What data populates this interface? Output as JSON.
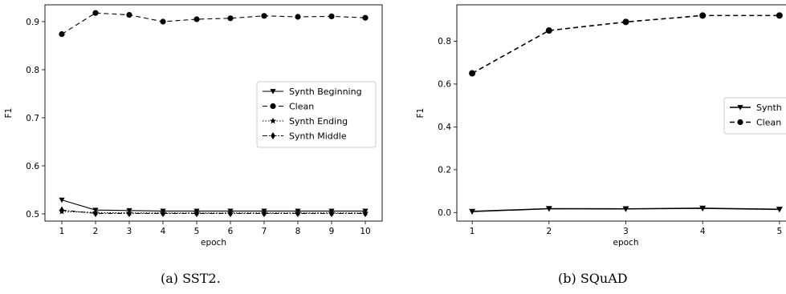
{
  "captions": {
    "a": "(a) SST2.",
    "b": "(b) SQuAD"
  },
  "chart_data": [
    {
      "type": "line",
      "title": "",
      "xlabel": "epoch",
      "ylabel": "F1",
      "x": [
        1,
        2,
        3,
        4,
        5,
        6,
        7,
        8,
        9,
        10
      ],
      "xlim": [
        0.5,
        10.5
      ],
      "ylim": [
        0.485,
        0.935
      ],
      "xticks": [
        "1",
        "2",
        "3",
        "4",
        "5",
        "6",
        "7",
        "8",
        "9",
        "10"
      ],
      "yticks": [
        "0.5",
        "0.6",
        "0.7",
        "0.8",
        "0.9"
      ],
      "ytick_values": [
        0.5,
        0.6,
        0.7,
        0.8,
        0.9
      ],
      "grid": false,
      "legend_position": "center-right",
      "series": [
        {
          "name": "Synth Beginning",
          "marker": "triangle-down",
          "linestyle": "solid",
          "values": [
            0.529,
            0.508,
            0.507,
            0.506,
            0.506,
            0.506,
            0.506,
            0.506,
            0.506,
            0.506
          ]
        },
        {
          "name": "Clean",
          "marker": "circle",
          "linestyle": "dashed",
          "values": [
            0.874,
            0.918,
            0.914,
            0.9,
            0.905,
            0.907,
            0.912,
            0.91,
            0.911,
            0.908
          ]
        },
        {
          "name": "Synth Ending",
          "marker": "star",
          "linestyle": "dotted",
          "values": [
            0.505,
            0.503,
            0.502,
            0.502,
            0.502,
            0.502,
            0.502,
            0.502,
            0.502,
            0.502
          ]
        },
        {
          "name": "Synth Middle",
          "marker": "diamond",
          "linestyle": "dashdot",
          "values": [
            0.508,
            0.501,
            0.501,
            0.501,
            0.501,
            0.501,
            0.501,
            0.501,
            0.501,
            0.501
          ]
        }
      ]
    },
    {
      "type": "line",
      "title": "",
      "xlabel": "epoch",
      "ylabel": "F1",
      "x": [
        1,
        2,
        3,
        4,
        5
      ],
      "xlim": [
        0.8,
        5.2
      ],
      "ylim": [
        -0.04,
        0.97
      ],
      "xticks": [
        "1",
        "2",
        "3",
        "4",
        "5"
      ],
      "yticks": [
        "0.0",
        "0.2",
        "0.4",
        "0.6",
        "0.8"
      ],
      "ytick_values": [
        0.0,
        0.2,
        0.4,
        0.6,
        0.8
      ],
      "grid": false,
      "legend_position": "center-right (clipped)",
      "series": [
        {
          "name": "Synth",
          "marker": "triangle-down",
          "linestyle": "solid",
          "values": [
            0.005,
            0.018,
            0.017,
            0.02,
            0.015
          ]
        },
        {
          "name": "Clean",
          "marker": "circle",
          "linestyle": "dashed",
          "values": [
            0.65,
            0.85,
            0.89,
            0.92,
            0.92
          ]
        }
      ]
    }
  ]
}
